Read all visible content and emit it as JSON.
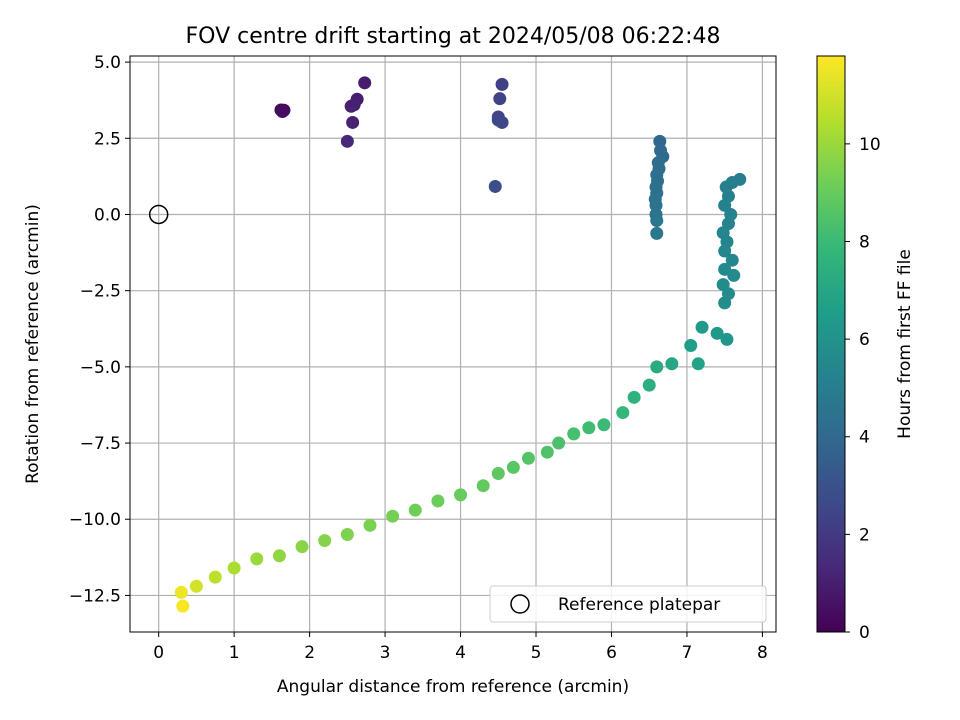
{
  "chart_data": {
    "type": "scatter",
    "title": "FOV centre drift starting at 2024/05/08 06:22:48",
    "xlabel": "Angular distance from reference (arcmin)",
    "ylabel": "Rotation from reference (arcmin)",
    "xlim": [
      -0.38,
      8.18
    ],
    "ylim": [
      -13.7,
      5.2
    ],
    "xticks": [
      0,
      1,
      2,
      3,
      4,
      5,
      6,
      7,
      8
    ],
    "xtick_labels": [
      "0",
      "1",
      "2",
      "3",
      "4",
      "5",
      "6",
      "7",
      "8"
    ],
    "yticks": [
      5.0,
      2.5,
      0.0,
      -2.5,
      -5.0,
      -7.5,
      -10.0,
      -12.5
    ],
    "ytick_labels": [
      "5.0",
      "2.5",
      "0.0",
      "−2.5",
      "−5.0",
      "−7.5",
      "−10.0",
      "−12.5"
    ],
    "grid": true,
    "colorbar": {
      "label": "Hours from first FF file",
      "range": [
        0,
        11.8
      ],
      "ticks": [
        0,
        2,
        4,
        6,
        8,
        10
      ],
      "tick_labels": [
        "0",
        "2",
        "4",
        "6",
        "8",
        "10"
      ],
      "colormap": "viridis"
    },
    "legend": {
      "position": "lower-right",
      "entries": [
        {
          "label": "Reference platepar",
          "marker": "open-circle"
        }
      ]
    },
    "reference_point": {
      "x": 0,
      "y": 0
    },
    "series": [
      {
        "points": [
          {
            "x": 1.62,
            "y": 3.43,
            "t": 0.3
          },
          {
            "x": 1.66,
            "y": 3.42,
            "t": 0.35
          },
          {
            "x": 1.64,
            "y": 3.38,
            "t": 0.4
          },
          {
            "x": 2.73,
            "y": 4.32,
            "t": 0.9
          },
          {
            "x": 2.63,
            "y": 3.78,
            "t": 1.0
          },
          {
            "x": 2.59,
            "y": 3.6,
            "t": 1.05
          },
          {
            "x": 2.55,
            "y": 3.55,
            "t": 1.1
          },
          {
            "x": 2.57,
            "y": 3.02,
            "t": 1.15
          },
          {
            "x": 2.5,
            "y": 2.4,
            "t": 1.3
          },
          {
            "x": 4.55,
            "y": 4.27,
            "t": 2.3
          },
          {
            "x": 4.52,
            "y": 3.8,
            "t": 2.4
          },
          {
            "x": 4.5,
            "y": 3.2,
            "t": 2.5
          },
          {
            "x": 4.55,
            "y": 3.02,
            "t": 2.55
          },
          {
            "x": 4.5,
            "y": 3.1,
            "t": 2.6
          },
          {
            "x": 4.46,
            "y": 0.92,
            "t": 2.8
          },
          {
            "x": 6.64,
            "y": 2.4,
            "t": 4.0
          },
          {
            "x": 6.65,
            "y": 2.1,
            "t": 4.05
          },
          {
            "x": 6.68,
            "y": 1.9,
            "t": 4.1
          },
          {
            "x": 6.62,
            "y": 1.7,
            "t": 4.15
          },
          {
            "x": 6.63,
            "y": 1.5,
            "t": 4.2
          },
          {
            "x": 6.6,
            "y": 1.3,
            "t": 4.25
          },
          {
            "x": 6.61,
            "y": 1.1,
            "t": 4.3
          },
          {
            "x": 6.59,
            "y": 0.9,
            "t": 4.35
          },
          {
            "x": 6.6,
            "y": 0.7,
            "t": 4.4
          },
          {
            "x": 6.58,
            "y": 0.5,
            "t": 4.45
          },
          {
            "x": 6.59,
            "y": 0.3,
            "t": 4.5
          },
          {
            "x": 6.59,
            "y": 0.0,
            "t": 4.55
          },
          {
            "x": 6.6,
            "y": -0.2,
            "t": 4.6
          },
          {
            "x": 6.6,
            "y": -0.62,
            "t": 4.7
          },
          {
            "x": 7.7,
            "y": 1.15,
            "t": 5.0
          },
          {
            "x": 7.6,
            "y": 1.05,
            "t": 5.05
          },
          {
            "x": 7.52,
            "y": 0.9,
            "t": 5.1
          },
          {
            "x": 7.55,
            "y": 0.6,
            "t": 5.15
          },
          {
            "x": 7.5,
            "y": 0.3,
            "t": 5.2
          },
          {
            "x": 7.58,
            "y": 0.0,
            "t": 5.25
          },
          {
            "x": 7.55,
            "y": -0.3,
            "t": 5.3
          },
          {
            "x": 7.48,
            "y": -0.6,
            "t": 5.35
          },
          {
            "x": 7.53,
            "y": -0.9,
            "t": 5.4
          },
          {
            "x": 7.5,
            "y": -1.2,
            "t": 5.45
          },
          {
            "x": 7.6,
            "y": -1.5,
            "t": 5.5
          },
          {
            "x": 7.5,
            "y": -1.8,
            "t": 5.55
          },
          {
            "x": 7.62,
            "y": -2.0,
            "t": 5.6
          },
          {
            "x": 7.48,
            "y": -2.3,
            "t": 5.65
          },
          {
            "x": 7.55,
            "y": -2.6,
            "t": 5.7
          },
          {
            "x": 7.5,
            "y": -2.9,
            "t": 5.75
          },
          {
            "x": 7.53,
            "y": -4.1,
            "t": 6.2
          },
          {
            "x": 7.4,
            "y": -3.9,
            "t": 6.3
          },
          {
            "x": 7.2,
            "y": -3.7,
            "t": 6.4
          },
          {
            "x": 7.05,
            "y": -4.3,
            "t": 6.6
          },
          {
            "x": 7.15,
            "y": -4.9,
            "t": 6.8
          },
          {
            "x": 6.8,
            "y": -4.9,
            "t": 7.0
          },
          {
            "x": 6.6,
            "y": -5.0,
            "t": 7.2
          },
          {
            "x": 6.5,
            "y": -5.6,
            "t": 7.4
          },
          {
            "x": 6.3,
            "y": -6.0,
            "t": 7.6
          },
          {
            "x": 6.15,
            "y": -6.5,
            "t": 7.8
          },
          {
            "x": 5.9,
            "y": -6.9,
            "t": 8.0
          },
          {
            "x": 5.7,
            "y": -7.0,
            "t": 8.1
          },
          {
            "x": 5.5,
            "y": -7.2,
            "t": 8.3
          },
          {
            "x": 5.3,
            "y": -7.5,
            "t": 8.4
          },
          {
            "x": 5.15,
            "y": -7.8,
            "t": 8.5
          },
          {
            "x": 4.9,
            "y": -8.0,
            "t": 8.6
          },
          {
            "x": 4.7,
            "y": -8.3,
            "t": 8.7
          },
          {
            "x": 4.5,
            "y": -8.5,
            "t": 8.8
          },
          {
            "x": 4.3,
            "y": -8.9,
            "t": 8.9
          },
          {
            "x": 4.0,
            "y": -9.2,
            "t": 9.0
          },
          {
            "x": 3.7,
            "y": -9.4,
            "t": 9.1
          },
          {
            "x": 3.4,
            "y": -9.7,
            "t": 9.2
          },
          {
            "x": 3.1,
            "y": -9.9,
            "t": 9.3
          },
          {
            "x": 2.8,
            "y": -10.2,
            "t": 9.4
          },
          {
            "x": 2.5,
            "y": -10.5,
            "t": 9.5
          },
          {
            "x": 2.2,
            "y": -10.7,
            "t": 9.6
          },
          {
            "x": 1.9,
            "y": -10.9,
            "t": 9.7
          },
          {
            "x": 1.6,
            "y": -11.2,
            "t": 9.8
          },
          {
            "x": 1.3,
            "y": -11.3,
            "t": 10.0
          },
          {
            "x": 1.0,
            "y": -11.6,
            "t": 10.3
          },
          {
            "x": 0.75,
            "y": -11.9,
            "t": 10.6
          },
          {
            "x": 0.5,
            "y": -12.2,
            "t": 11.0
          },
          {
            "x": 0.3,
            "y": -12.4,
            "t": 11.5
          },
          {
            "x": 0.32,
            "y": -12.85,
            "t": 11.7
          }
        ]
      }
    ]
  }
}
